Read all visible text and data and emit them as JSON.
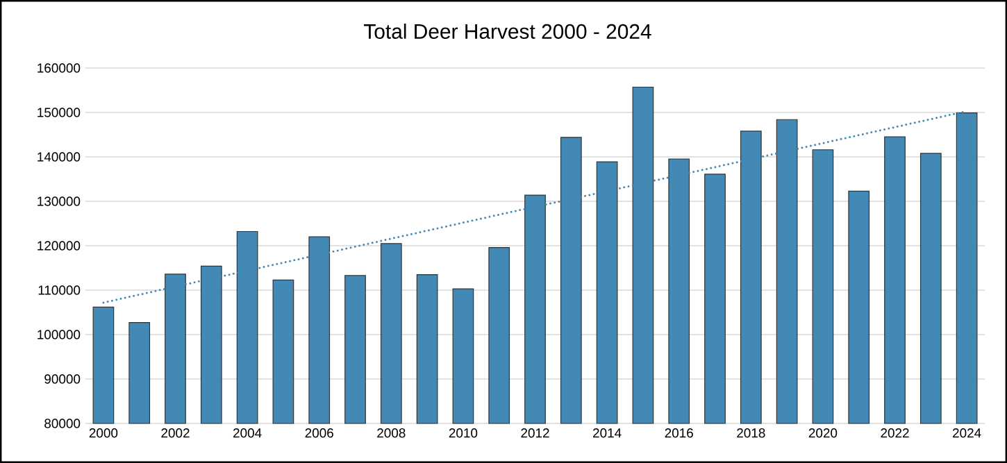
{
  "chart_data": {
    "type": "bar",
    "title": "Total Deer Harvest 2000 - 2024",
    "categories": [
      "2000",
      null,
      "2002",
      null,
      "2004",
      null,
      "2006",
      null,
      "2008",
      null,
      "2010",
      null,
      "2012",
      null,
      "2014",
      null,
      "2016",
      null,
      "2018",
      null,
      "2020",
      null,
      "2022",
      null,
      "2024"
    ],
    "series": [
      {
        "color": "#4389b5",
        "values": [
          106200,
          102700,
          113600,
          115400,
          123200,
          112300,
          122000,
          113300,
          120500,
          113500,
          110300,
          119600,
          131400,
          144400,
          138900,
          155700,
          139500,
          136100,
          145800,
          148400,
          141600,
          132300,
          144500,
          140800,
          149900
        ]
      },
      {
        "type": "line",
        "color": "#4389b5",
        "line_style": "dotted",
        "values": [
          107200,
          109000,
          110800,
          112600,
          114400,
          116200,
          118000,
          119800,
          121600,
          123400,
          125200,
          127000,
          128800,
          130500,
          132300,
          134100,
          135900,
          137700,
          139500,
          141300,
          143100,
          144900,
          146700,
          148500,
          150300
        ]
      }
    ],
    "ylim": [
      80000,
      160000
    ],
    "yticks": [
      80000,
      90000,
      100000,
      110000,
      120000,
      130000,
      140000,
      150000,
      160000
    ],
    "grid": "y"
  }
}
